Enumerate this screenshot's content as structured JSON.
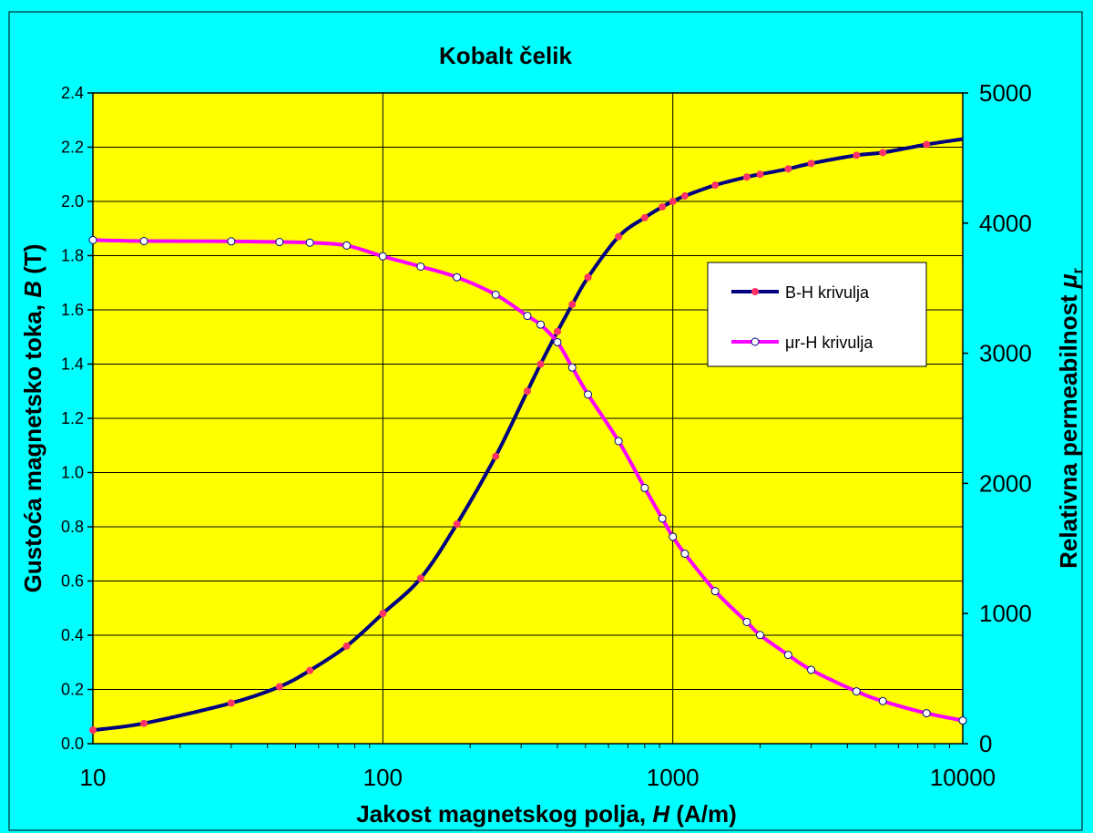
{
  "colors": {
    "background": "#00FFFF",
    "plot_area": "#FFFF00",
    "bh_line": "#000080",
    "bh_marker": "#FF3366",
    "mu_line": "#FF00FF",
    "mu_marker_fill": "#FFFFFF",
    "mu_marker_edge": "#000080",
    "grid": "#000000"
  },
  "chart_data": {
    "type": "line",
    "title": "Kobalt čelik",
    "xlabel": {
      "main": "Jakost magnetskog polja, ",
      "var": "H",
      "unit": " (A/m)"
    },
    "ylabel_left": {
      "main": "Gustoća magnetsko toka, ",
      "var": "B",
      "unit": " (T)"
    },
    "ylabel_right": {
      "main": "Relativna permeabilnost ",
      "var": "μ",
      "sub": "r"
    },
    "x_scale": "log",
    "xlim": [
      10,
      10000
    ],
    "ylim_left": [
      0,
      2.4
    ],
    "ylim_right": [
      0,
      5000
    ],
    "x_ticks": [
      "10",
      "100",
      "1000",
      "10000"
    ],
    "y_left_ticks": [
      "0.0",
      "0.2",
      "0.4",
      "0.6",
      "0.8",
      "1.0",
      "1.2",
      "1.4",
      "1.6",
      "1.8",
      "2.0",
      "2.2",
      "2.4"
    ],
    "y_right_ticks": [
      "0",
      "1000",
      "2000",
      "3000",
      "4000",
      "5000"
    ],
    "grid": "major",
    "legend_position": "right",
    "series": [
      {
        "name": "B-H krivulja",
        "axis": "left",
        "x": [
          10,
          15,
          30,
          44,
          56,
          75,
          100,
          135,
          180,
          245,
          315,
          350,
          400,
          450,
          510,
          650,
          800,
          920,
          1000,
          1100,
          1400,
          1800,
          2000,
          2500,
          3000,
          4300,
          5300,
          7500,
          10000
        ],
        "y": [
          0.05,
          0.075,
          0.15,
          0.21,
          0.27,
          0.36,
          0.48,
          0.61,
          0.81,
          1.06,
          1.3,
          1.4,
          1.52,
          1.62,
          1.72,
          1.87,
          1.94,
          1.98,
          2.0,
          2.02,
          2.06,
          2.09,
          2.1,
          2.12,
          2.14,
          2.17,
          2.18,
          2.21,
          2.23
        ],
        "markers": [
          true,
          true,
          true,
          true,
          true,
          true,
          true,
          true,
          true,
          true,
          true,
          true,
          true,
          true,
          true,
          true,
          true,
          true,
          true,
          true,
          true,
          true,
          true,
          true,
          true,
          true,
          true,
          true,
          false
        ]
      },
      {
        "name": "μr-H krivulja",
        "axis": "right",
        "x": [
          10,
          15,
          30,
          44,
          56,
          75,
          100,
          135,
          180,
          245,
          315,
          350,
          400,
          450,
          510,
          650,
          800,
          920,
          1000,
          1100,
          1400,
          1800,
          2000,
          2500,
          3000,
          4300,
          5300,
          7500,
          10000
        ],
        "y": [
          3870,
          3862,
          3860,
          3855,
          3850,
          3828,
          3745,
          3666,
          3584,
          3450,
          3287,
          3220,
          3085,
          2890,
          2683,
          2325,
          1965,
          1730,
          1590,
          1460,
          1172,
          935,
          835,
          682,
          567,
          402,
          327,
          234,
          178
        ],
        "markers": [
          true,
          true,
          true,
          true,
          true,
          true,
          true,
          true,
          true,
          true,
          true,
          true,
          true,
          true,
          true,
          true,
          true,
          true,
          true,
          true,
          true,
          true,
          true,
          true,
          true,
          true,
          true,
          true,
          true
        ]
      }
    ]
  }
}
